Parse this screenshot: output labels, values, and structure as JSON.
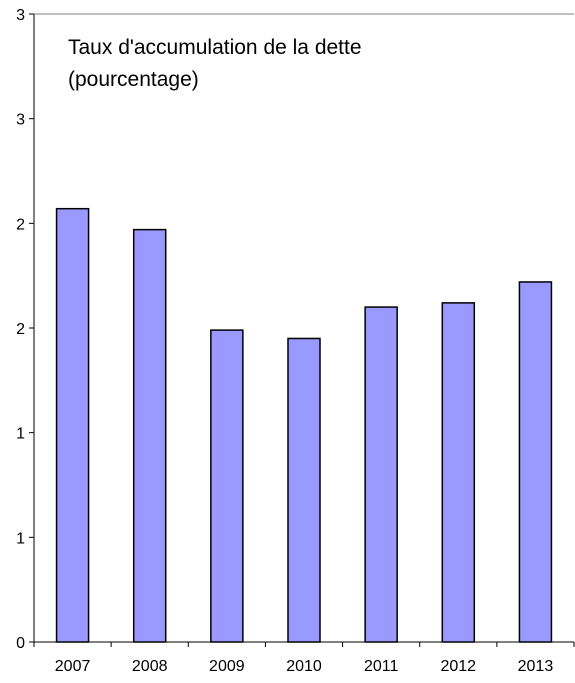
{
  "chart_data": {
    "type": "bar",
    "title_lines": [
      "Taux d'accumulation de la dette",
      "(pourcentage)"
    ],
    "categories": [
      "2007",
      "2008",
      "2009",
      "2010",
      "2011",
      "2012",
      "2013"
    ],
    "values": [
      2.07,
      1.97,
      1.49,
      1.45,
      1.6,
      1.62,
      1.72
    ],
    "ylim": [
      0,
      3
    ],
    "ytick_values": [
      0,
      0.5,
      1,
      1.5,
      2,
      2.5,
      3
    ],
    "ytick_labels": [
      "0",
      "1",
      "1",
      "2",
      "2",
      "3",
      "3"
    ],
    "xlabel": "",
    "ylabel": "",
    "grid": false,
    "legend": "none",
    "bar_color": "#9999FF",
    "bar_edge_color": "#000000",
    "axis_color": "#000000"
  }
}
